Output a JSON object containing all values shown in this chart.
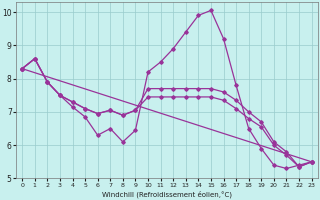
{
  "xlabel": "Windchill (Refroidissement éolien,°C)",
  "background_color": "#c8f0ee",
  "line_color": "#993399",
  "grid_color": "#99cccc",
  "xlim": [
    -0.5,
    23.5
  ],
  "ylim": [
    5,
    10.3
  ],
  "yticks": [
    5,
    6,
    7,
    8,
    9,
    10
  ],
  "xticks": [
    0,
    1,
    2,
    3,
    4,
    5,
    6,
    7,
    8,
    9,
    10,
    11,
    12,
    13,
    14,
    15,
    16,
    17,
    18,
    19,
    20,
    21,
    22,
    23
  ],
  "series1_x": [
    0,
    1,
    2,
    3,
    4,
    5,
    6,
    7,
    8,
    9,
    10,
    11,
    12,
    13,
    14,
    15,
    16,
    17,
    18,
    19,
    20,
    21,
    22,
    23
  ],
  "series1_y": [
    8.3,
    8.6,
    7.9,
    7.5,
    7.15,
    6.85,
    6.3,
    6.5,
    6.1,
    6.45,
    8.2,
    8.5,
    8.9,
    9.4,
    9.9,
    10.05,
    9.2,
    7.8,
    6.5,
    5.9,
    5.4,
    5.3,
    5.4,
    5.5
  ],
  "series2_x": [
    0,
    1,
    2,
    3,
    4,
    5,
    6,
    7,
    8,
    9,
    10,
    11,
    12,
    13,
    14,
    15,
    16,
    17,
    18,
    19,
    20,
    21,
    22,
    23
  ],
  "series2_y": [
    8.3,
    8.6,
    7.9,
    7.5,
    7.3,
    7.1,
    6.95,
    7.05,
    6.9,
    7.05,
    7.45,
    7.45,
    7.45,
    7.45,
    7.45,
    7.45,
    7.35,
    7.1,
    6.8,
    6.55,
    6.0,
    5.7,
    5.35,
    5.5
  ],
  "series3_x": [
    0,
    1,
    2,
    3,
    4,
    5,
    6,
    7,
    8,
    9,
    10,
    11,
    12,
    13,
    14,
    15,
    16,
    17,
    18,
    19,
    20,
    21,
    22,
    23
  ],
  "series3_y": [
    8.3,
    8.6,
    7.9,
    7.5,
    7.3,
    7.1,
    6.95,
    7.05,
    6.9,
    7.05,
    7.7,
    7.7,
    7.7,
    7.7,
    7.7,
    7.7,
    7.6,
    7.35,
    7.0,
    6.7,
    6.1,
    5.8,
    5.35,
    5.5
  ],
  "series4_x": [
    0,
    23
  ],
  "series4_y": [
    8.3,
    5.5
  ],
  "marker": "D",
  "markersize": 1.8,
  "linewidth": 0.9
}
